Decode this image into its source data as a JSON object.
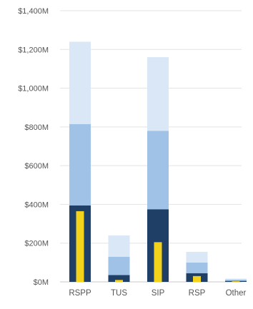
{
  "chart_data": {
    "type": "bar",
    "title": "",
    "xlabel": "",
    "ylabel": "",
    "categories": [
      "RSPP",
      "TUS",
      "SIP",
      "RSP",
      "Other"
    ],
    "ylim": [
      0,
      1400
    ],
    "yticks": [
      0,
      200,
      400,
      600,
      800,
      1000,
      1200,
      1400
    ],
    "ytick_labels": [
      "$0M",
      "$200M",
      "$400M",
      "$600M",
      "$800M",
      "$1,000M",
      "$1,200M",
      "$1,400M"
    ],
    "grid": true,
    "stacked": true,
    "series": [
      {
        "values": [
          395,
          35,
          375,
          45,
          5
        ],
        "color": "#1f3f66"
      },
      {
        "values": [
          420,
          95,
          405,
          55,
          6
        ],
        "color": "#9fc2e6"
      },
      {
        "values": [
          425,
          110,
          380,
          55,
          6
        ],
        "color": "#d9e7f6"
      }
    ],
    "overlay_series": {
      "values": [
        365,
        10,
        205,
        30,
        3
      ],
      "color": "#f2d21a"
    }
  }
}
